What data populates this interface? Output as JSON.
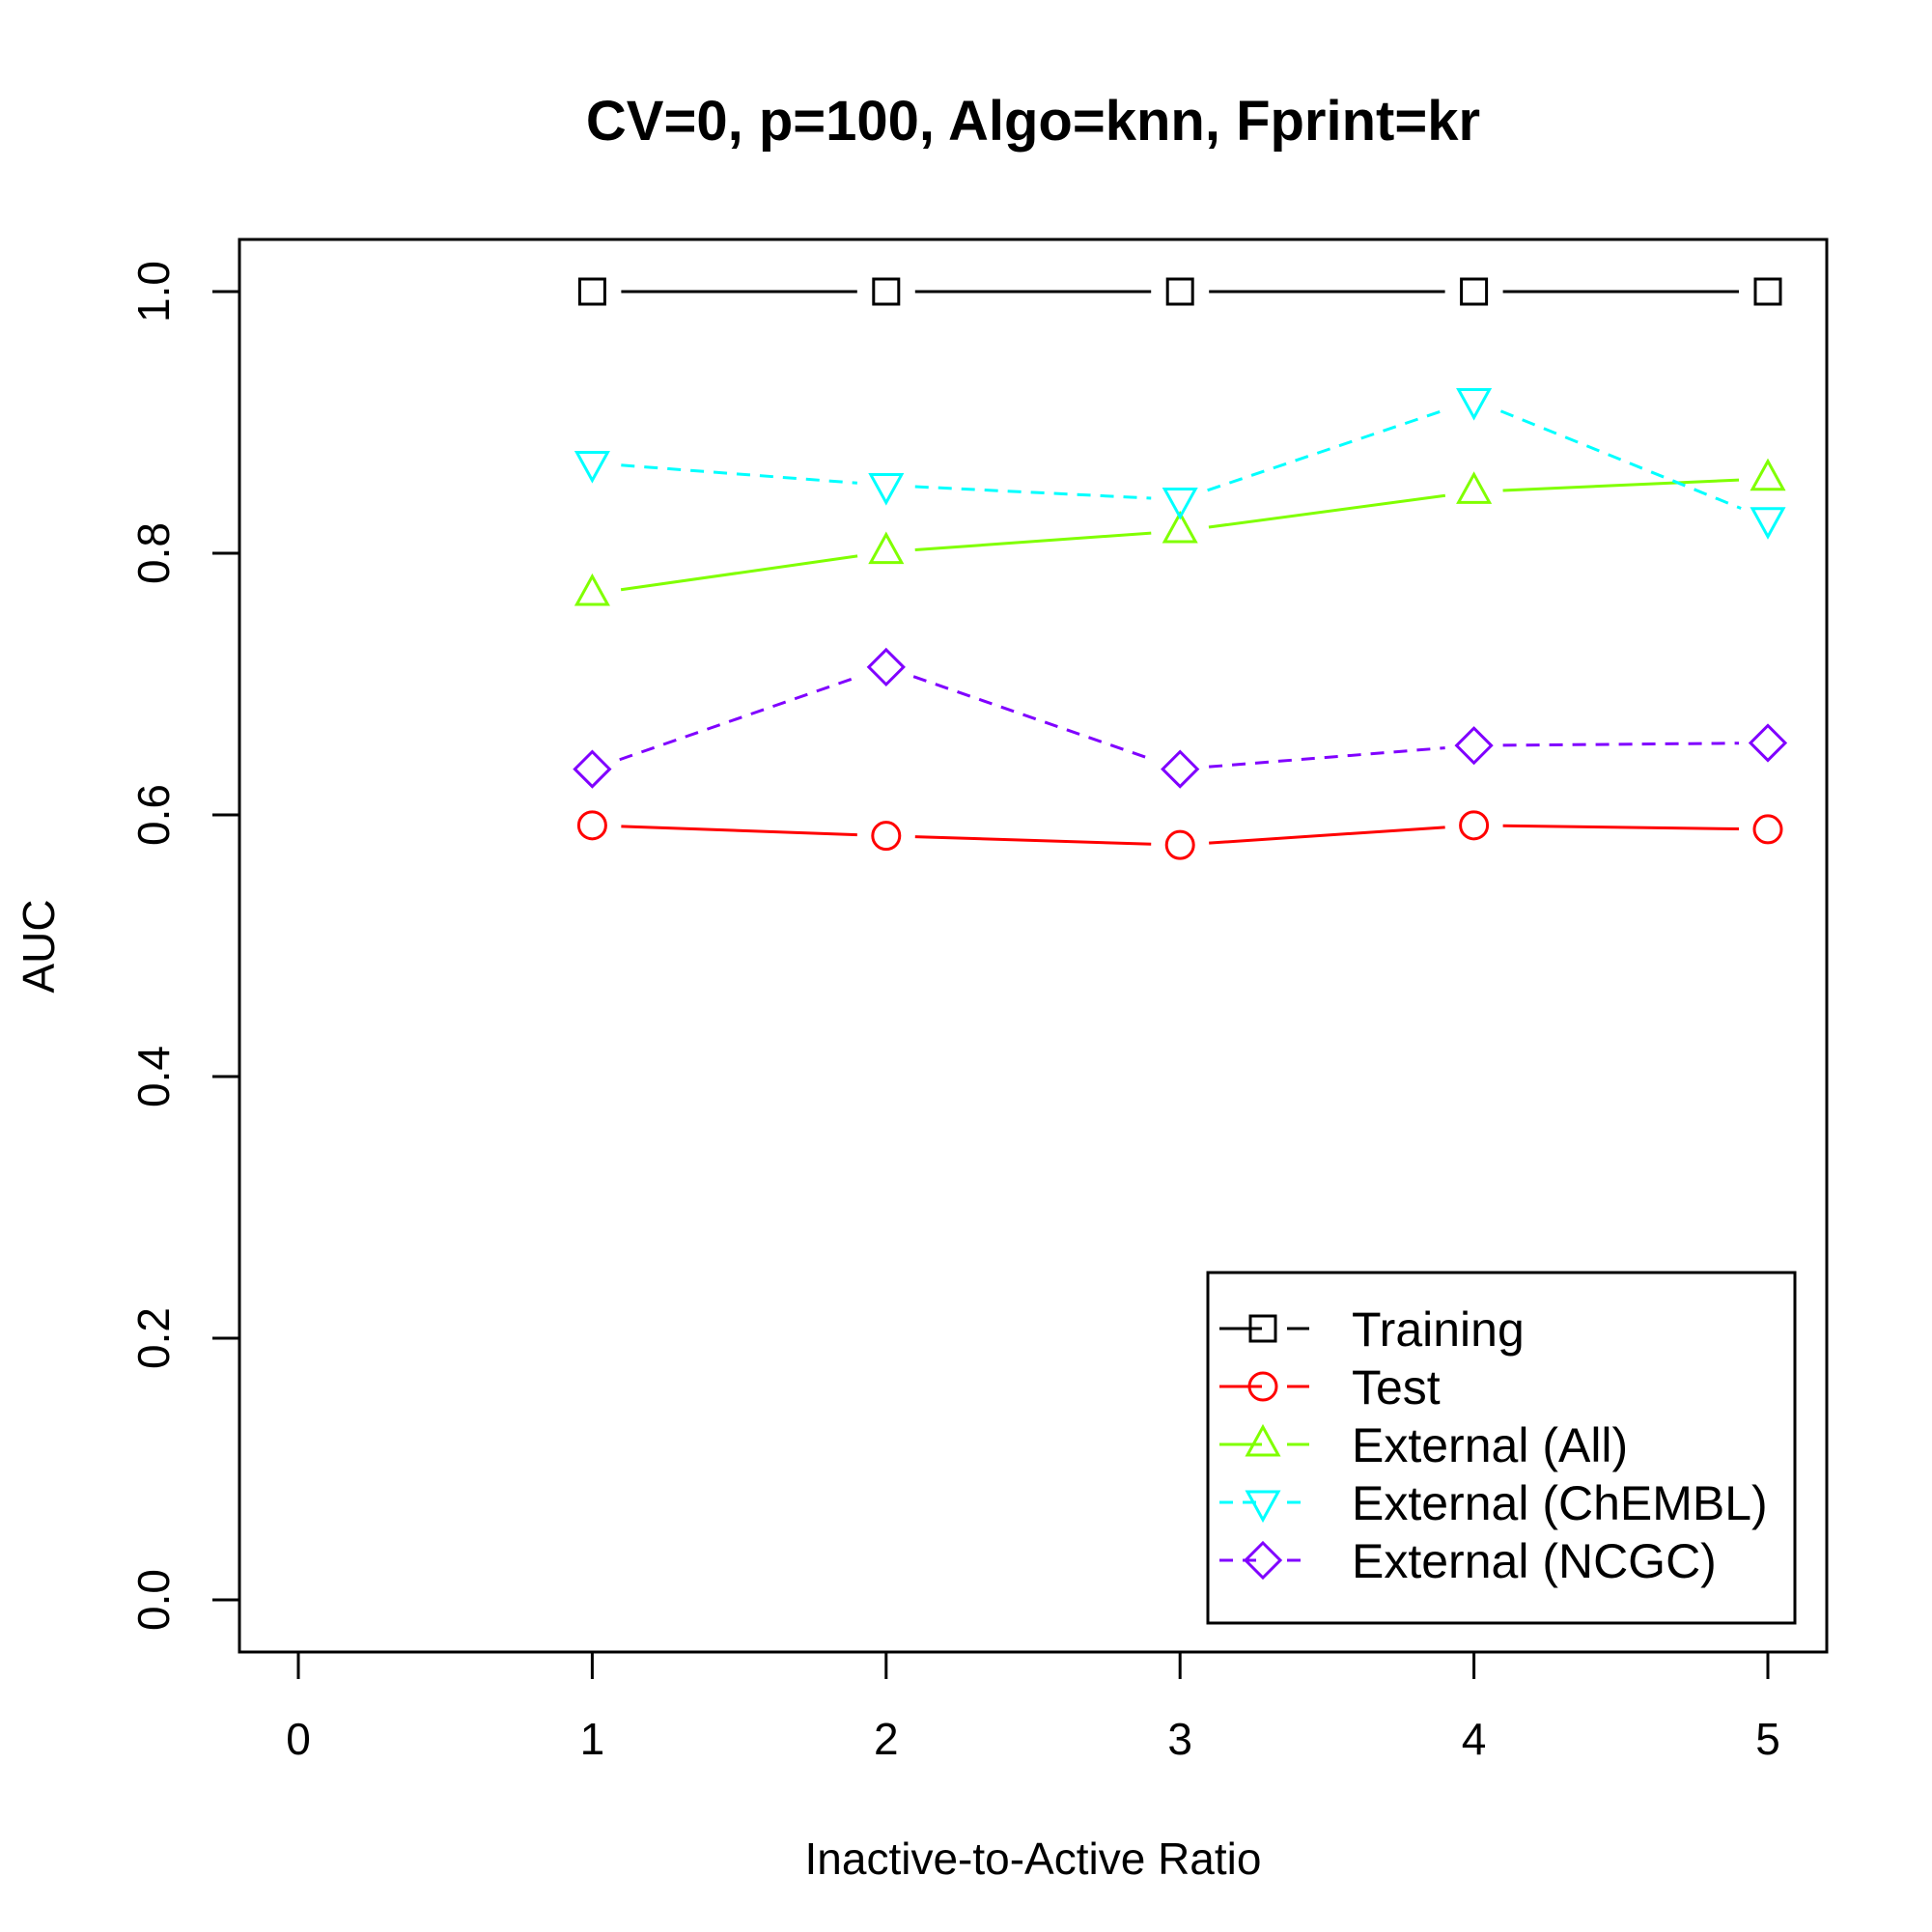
{
  "chart_data": {
    "type": "line",
    "title": "CV=0, p=100, Algo=knn, Fprint=kr",
    "xlabel": "Inactive-to-Active Ratio",
    "ylabel": "AUC",
    "xlim": [
      0,
      5
    ],
    "ylim": [
      0,
      1
    ],
    "x_ticks": [
      "0",
      "1",
      "2",
      "3",
      "4",
      "5"
    ],
    "y_ticks": [
      "0.0",
      "0.2",
      "0.4",
      "0.6",
      "0.8",
      "1.0"
    ],
    "x": [
      1,
      2,
      3,
      4,
      5
    ],
    "grid": false,
    "legend_position": "bottom-right",
    "series": [
      {
        "name": "Training",
        "values": [
          1.0,
          1.0,
          1.0,
          1.0,
          1.0
        ],
        "color": "#000000",
        "marker": "square",
        "dashed": false
      },
      {
        "name": "Test",
        "values": [
          0.592,
          0.584,
          0.577,
          0.592,
          0.589
        ],
        "color": "#ff0000",
        "marker": "circle",
        "dashed": false
      },
      {
        "name": "External (All)",
        "values": [
          0.769,
          0.801,
          0.817,
          0.847,
          0.857
        ],
        "color": "#80ff00",
        "marker": "triangle-up",
        "dashed": false
      },
      {
        "name": "External (ChEMBL)",
        "values": [
          0.869,
          0.852,
          0.841,
          0.917,
          0.826
        ],
        "color": "#00ffff",
        "marker": "triangle-down",
        "dashed": true
      },
      {
        "name": "External (NCGC)",
        "values": [
          0.635,
          0.713,
          0.635,
          0.653,
          0.655
        ],
        "color": "#8000ff",
        "marker": "diamond",
        "dashed": true
      }
    ]
  }
}
